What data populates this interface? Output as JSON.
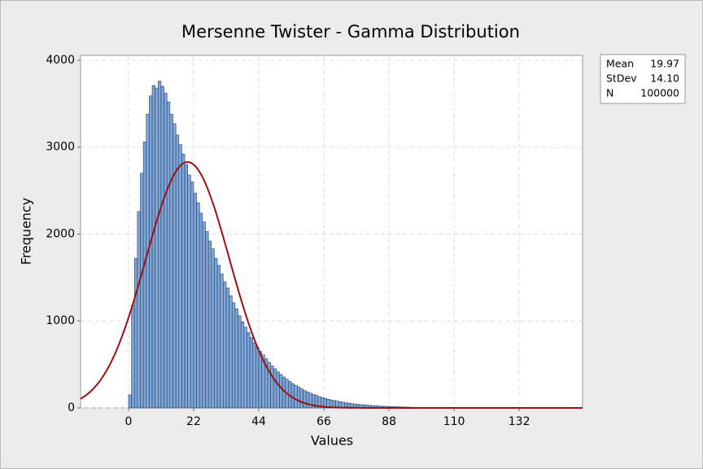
{
  "chart_data": {
    "type": "histogram",
    "title": "Mersenne Twister - Gamma Distribution",
    "x_label": "Values",
    "y_label": "Frequency",
    "bins": [
      0,
      1,
      2,
      3,
      4,
      5,
      6,
      7,
      8,
      9,
      10,
      11,
      12,
      13,
      14,
      15,
      16,
      17,
      18,
      19,
      20,
      21,
      22,
      23,
      24,
      25,
      26,
      27,
      28,
      29,
      30,
      31,
      32,
      33,
      34,
      35,
      36,
      37,
      38,
      39,
      40,
      41,
      42,
      43,
      44,
      45,
      46,
      47,
      48,
      49,
      50,
      51,
      52,
      53,
      54,
      55,
      56,
      57,
      58,
      59,
      60,
      61,
      62,
      63,
      64,
      65,
      66,
      67,
      68,
      69,
      70,
      71,
      72,
      73,
      74,
      75,
      76,
      77,
      78,
      79,
      80,
      81,
      82,
      83,
      84,
      85,
      86,
      87,
      88,
      89,
      90,
      91,
      92,
      93,
      94,
      95,
      96,
      97,
      98,
      99,
      100,
      101,
      102,
      103,
      104,
      105,
      106,
      107,
      108,
      109,
      110,
      111,
      112,
      113,
      114,
      115,
      116,
      117,
      118,
      119,
      120,
      121,
      122,
      123,
      124,
      125,
      126,
      127,
      128,
      129,
      130,
      131,
      132,
      133,
      134,
      135,
      136,
      137,
      138,
      139,
      140,
      141,
      142,
      143,
      144,
      145,
      146,
      147,
      148,
      149,
      150
    ],
    "values": [
      150,
      1180,
      1720,
      2260,
      2700,
      3060,
      3380,
      3590,
      3710,
      3680,
      3760,
      3700,
      3620,
      3520,
      3380,
      3270,
      3140,
      3030,
      2920,
      2800,
      2680,
      2600,
      2470,
      2360,
      2240,
      2140,
      2030,
      1920,
      1830,
      1720,
      1640,
      1540,
      1450,
      1380,
      1290,
      1210,
      1140,
      1060,
      990,
      930,
      870,
      810,
      750,
      700,
      650,
      610,
      565,
      525,
      485,
      450,
      415,
      385,
      355,
      330,
      305,
      280,
      260,
      240,
      220,
      200,
      185,
      170,
      155,
      145,
      130,
      120,
      110,
      100,
      92,
      85,
      78,
      72,
      65,
      60,
      55,
      50,
      46,
      42,
      38,
      35,
      32,
      29,
      27,
      24,
      22,
      20,
      18,
      17,
      15,
      14,
      13,
      12,
      11,
      10,
      9,
      8,
      7,
      7,
      6,
      6,
      5,
      5,
      4,
      4,
      4,
      3,
      3,
      3,
      3,
      2,
      2,
      2,
      2,
      2,
      2,
      2,
      1,
      1,
      1,
      1,
      1,
      1,
      1,
      1,
      1,
      1,
      1,
      1,
      0,
      0,
      0,
      0,
      0,
      0,
      0,
      0,
      0,
      0,
      0,
      0,
      0,
      0,
      0,
      0,
      0,
      0,
      0,
      0,
      0,
      0,
      0
    ],
    "color": "#7ea6d8",
    "edge_color": "#2b3f5e",
    "curve_color": "#9b1010",
    "xlim": [
      -16.2,
      153.4
    ],
    "xticks": [
      0,
      22,
      44,
      66,
      88,
      110,
      132
    ],
    "ylim": [
      0,
      4056
    ],
    "yticks": [
      0,
      1000,
      2000,
      3000,
      4000
    ],
    "grid": true,
    "stats": [
      {
        "name": "Mean",
        "value": 19.97
      },
      {
        "name": "StDev",
        "value": 14.1,
        "label": "14.10"
      },
      {
        "name": "N",
        "value": 100000
      }
    ]
  }
}
